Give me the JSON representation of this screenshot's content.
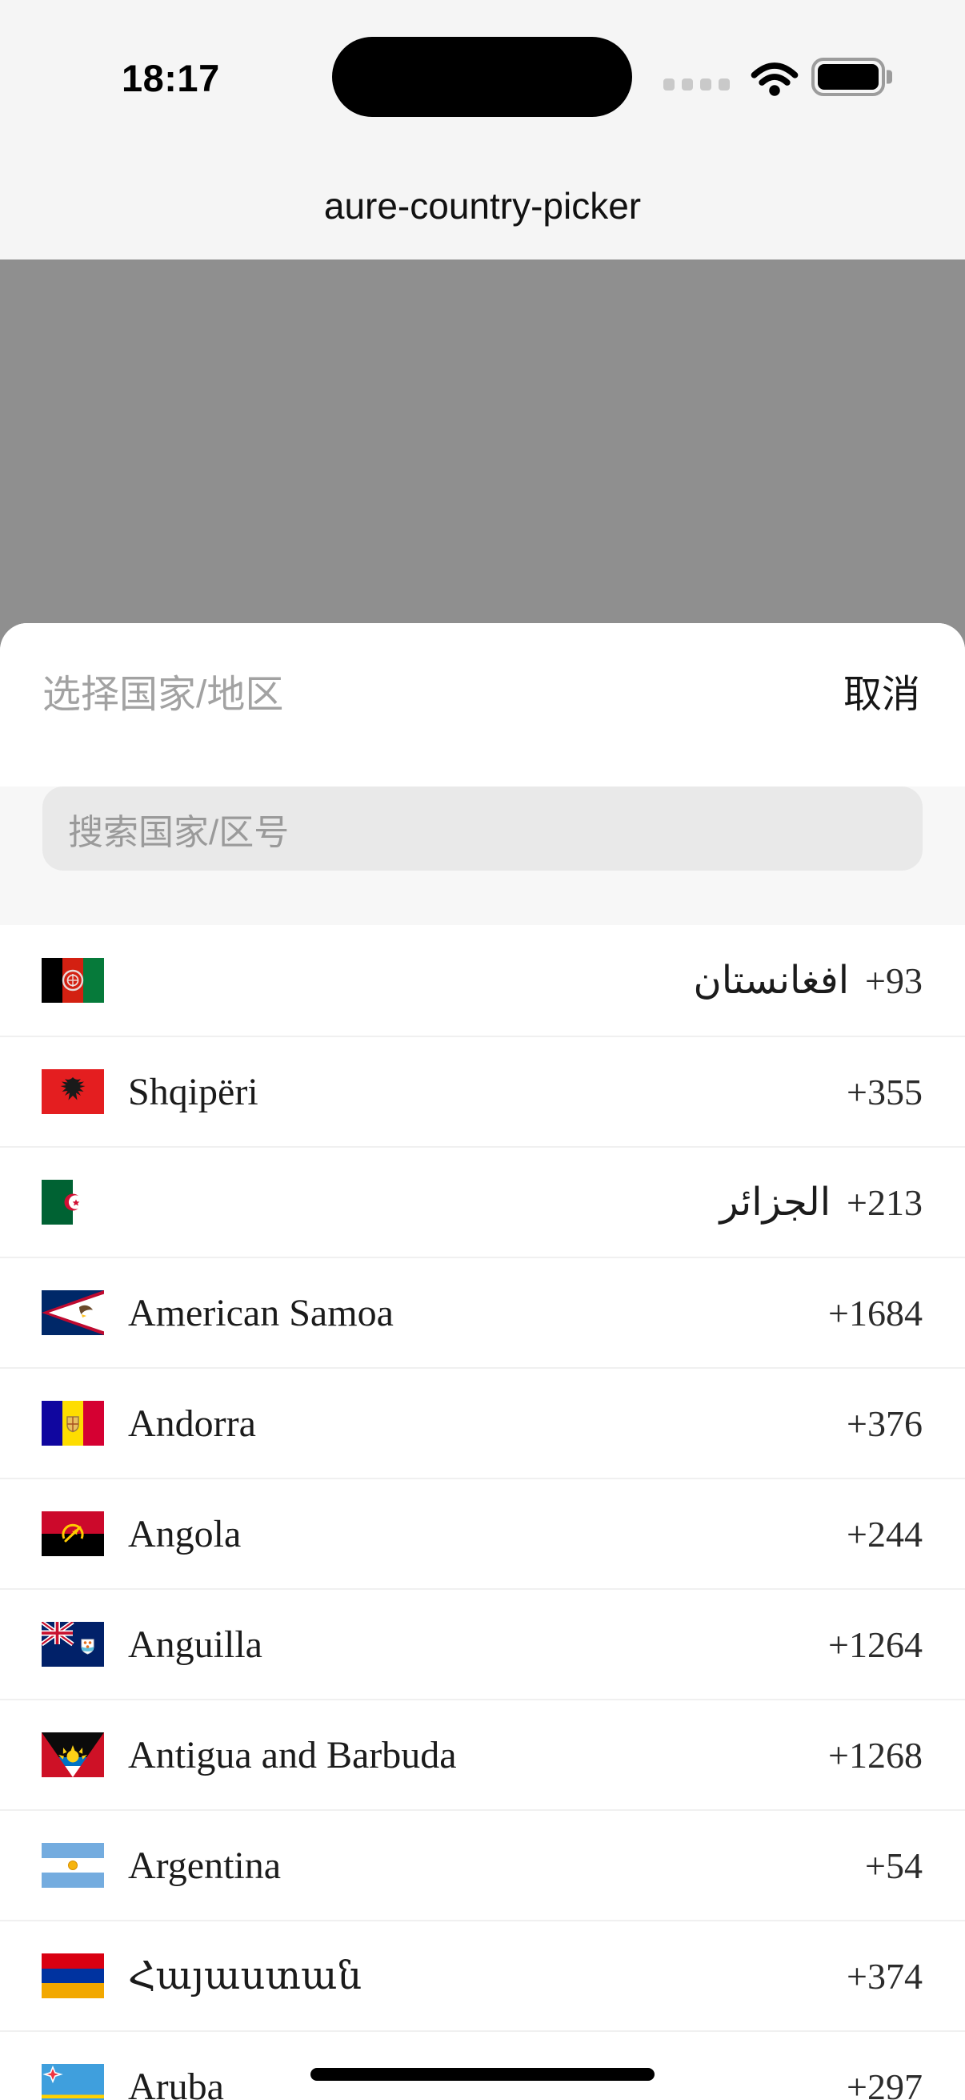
{
  "status_bar": {
    "time": "18:17"
  },
  "app": {
    "title": "aure-country-picker"
  },
  "sheet": {
    "header": {
      "title": "选择国家/地区",
      "cancel_label": "取消"
    },
    "search": {
      "placeholder": "搜索国家/区号"
    },
    "countries": [
      {
        "flag": "af",
        "name": "افغانستان",
        "dial_code": "+93"
      },
      {
        "flag": "al",
        "name": "Shqipëri",
        "dial_code": "+355"
      },
      {
        "flag": "dz",
        "name": "الجزائر",
        "dial_code": "+213"
      },
      {
        "flag": "as",
        "name": "American Samoa",
        "dial_code": "+1684"
      },
      {
        "flag": "ad",
        "name": "Andorra",
        "dial_code": "+376"
      },
      {
        "flag": "ao",
        "name": "Angola",
        "dial_code": "+244"
      },
      {
        "flag": "ai",
        "name": "Anguilla",
        "dial_code": "+1264"
      },
      {
        "flag": "ag",
        "name": "Antigua and Barbuda",
        "dial_code": "+1268"
      },
      {
        "flag": "ar",
        "name": "Argentina",
        "dial_code": "+54"
      },
      {
        "flag": "am",
        "name": "Հայաստան",
        "dial_code": "+374"
      },
      {
        "flag": "aw",
        "name": "Aruba",
        "dial_code": "+297"
      }
    ]
  },
  "colors": {
    "page_background": "#f5f5f5",
    "dim_overlay": "#8f8f8f",
    "sheet_background": "#ffffff",
    "search_strip": "#f7f7f7",
    "search_field": "#e9e9e9",
    "separator": "#f0f0f0",
    "sheet_title_text": "#a2a2a2",
    "country_name_text": "#1b1b1b",
    "dial_code_text": "#2b2b2b"
  }
}
